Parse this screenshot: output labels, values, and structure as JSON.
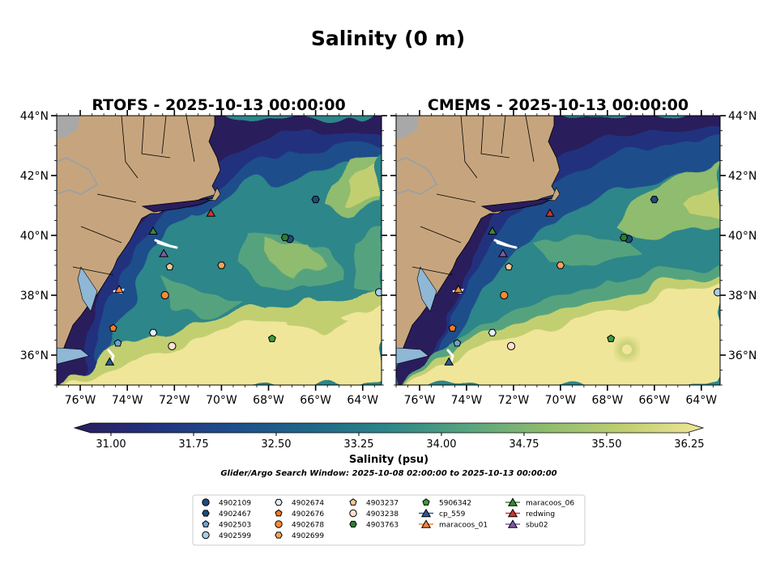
{
  "figure": {
    "title": "Salinity (0 m)",
    "search_window": "Glider/Argo Search Window: 2025-10-08 02:00:00 to 2025-10-13 00:00:00"
  },
  "chart_data": [
    {
      "type": "heatmap",
      "title": "RTOFS - 2025-10-13 00:00:00",
      "x_ticks": [
        "76°W",
        "74°W",
        "72°W",
        "70°W",
        "68°W",
        "66°W",
        "64°W"
      ],
      "x_tick_values": [
        -76,
        -74,
        -72,
        -70,
        -68,
        -66,
        -64
      ],
      "y_ticks": [
        "44°N",
        "42°N",
        "40°N",
        "38°N",
        "36°N"
      ],
      "y_tick_values": [
        44,
        42,
        40,
        38,
        36
      ],
      "xlim": [
        -77,
        -63.2
      ],
      "ylim": [
        35,
        44
      ],
      "variable": "Salinity (psu)"
    },
    {
      "type": "heatmap",
      "title": "CMEMS - 2025-10-13 00:00:00",
      "x_ticks": [
        "76°W",
        "74°W",
        "72°W",
        "70°W",
        "68°W",
        "66°W",
        "64°W"
      ],
      "x_tick_values": [
        -76,
        -74,
        -72,
        -70,
        -68,
        -66,
        -64
      ],
      "y_ticks": [
        "44°N",
        "42°N",
        "40°N",
        "38°N",
        "36°N"
      ],
      "y_tick_values": [
        44,
        42,
        40,
        38,
        36
      ],
      "xlim": [
        -77,
        -63.2
      ],
      "ylim": [
        35,
        44
      ],
      "variable": "Salinity (psu)"
    }
  ],
  "colorbar": {
    "label": "Salinity (psu)",
    "ticks": [
      "31.00",
      "31.75",
      "32.50",
      "33.25",
      "34.00",
      "34.75",
      "35.50",
      "36.25"
    ],
    "range": [
      31.0,
      36.25
    ],
    "colors": [
      "#2a1d5c",
      "#22317e",
      "#1e4d8c",
      "#1f6888",
      "#2d8689",
      "#55a37e",
      "#8fbc6e",
      "#c2cf71",
      "#f0e69a"
    ]
  },
  "observations": [
    {
      "id": "4902109",
      "type": "argo",
      "marker": "circle",
      "color": "#1f4a7a",
      "lon": -67.1,
      "lat": 39.88
    },
    {
      "id": "4902467",
      "type": "argo",
      "marker": "hexagon",
      "color": "#1f4a7a",
      "lon": -66.0,
      "lat": 41.2
    },
    {
      "id": "4902503",
      "type": "argo",
      "marker": "pentagon",
      "color": "#6fa2cf",
      "lon": -74.4,
      "lat": 36.4
    },
    {
      "id": "4902599",
      "type": "argo",
      "marker": "circle",
      "color": "#a9cde8",
      "lon": -63.3,
      "lat": 38.1
    },
    {
      "id": "4902674",
      "type": "argo",
      "marker": "hexagon",
      "color": "#e3eefa",
      "lon": -72.9,
      "lat": 36.75
    },
    {
      "id": "4902676",
      "type": "argo",
      "marker": "pentagon",
      "color": "#f07a2c",
      "lon": -74.6,
      "lat": 36.9
    },
    {
      "id": "4902678",
      "type": "argo",
      "marker": "circle",
      "color": "#f48a3c",
      "lon": -72.4,
      "lat": 38.0
    },
    {
      "id": "4902699",
      "type": "argo",
      "marker": "hexagon",
      "color": "#f2a55a",
      "lon": -70.0,
      "lat": 39.0
    },
    {
      "id": "4903237",
      "type": "argo",
      "marker": "pentagon",
      "color": "#f6c79a",
      "lon": -72.2,
      "lat": 38.95
    },
    {
      "id": "4903238",
      "type": "argo",
      "marker": "circle",
      "color": "#fbe3cf",
      "lon": -72.1,
      "lat": 36.3
    },
    {
      "id": "4903763",
      "type": "argo",
      "marker": "hexagon",
      "color": "#2e7d32",
      "lon": -67.3,
      "lat": 39.93
    },
    {
      "id": "5906342",
      "type": "argo",
      "marker": "pentagon",
      "color": "#3e9a3e",
      "lon": -67.85,
      "lat": 36.55
    },
    {
      "id": "cp_559",
      "type": "glider",
      "marker": "triangle",
      "color": "#2c5a93",
      "lon": -74.75,
      "lat": 35.78
    },
    {
      "id": "maracoos_01",
      "type": "glider",
      "marker": "triangle",
      "color": "#f2853c",
      "lon": -74.35,
      "lat": 38.2
    },
    {
      "id": "maracoos_06",
      "type": "glider",
      "marker": "triangle",
      "color": "#3a8a34",
      "lon": -72.9,
      "lat": 40.15
    },
    {
      "id": "redwing",
      "type": "glider",
      "marker": "triangle",
      "color": "#d0342c",
      "lon": -70.45,
      "lat": 40.75
    },
    {
      "id": "sbu02",
      "type": "glider",
      "marker": "triangle",
      "color": "#7e5aa6",
      "lon": -72.45,
      "lat": 39.4
    }
  ],
  "legend": {
    "columns": [
      [
        "4902109",
        "4902467",
        "4902503",
        "4902599"
      ],
      [
        "4902674",
        "4902676",
        "4902678",
        "4902699"
      ],
      [
        "4903237",
        "4903238",
        "4903763"
      ],
      [
        "5906342",
        "cp_559",
        "maracoos_01"
      ],
      [
        "maracoos_06",
        "redwing",
        "sbu02"
      ]
    ]
  },
  "colors": {
    "land": "#c6a57e",
    "lake": "#a8a8a8",
    "coast": "#000000",
    "glider_track": "#ffffff"
  }
}
